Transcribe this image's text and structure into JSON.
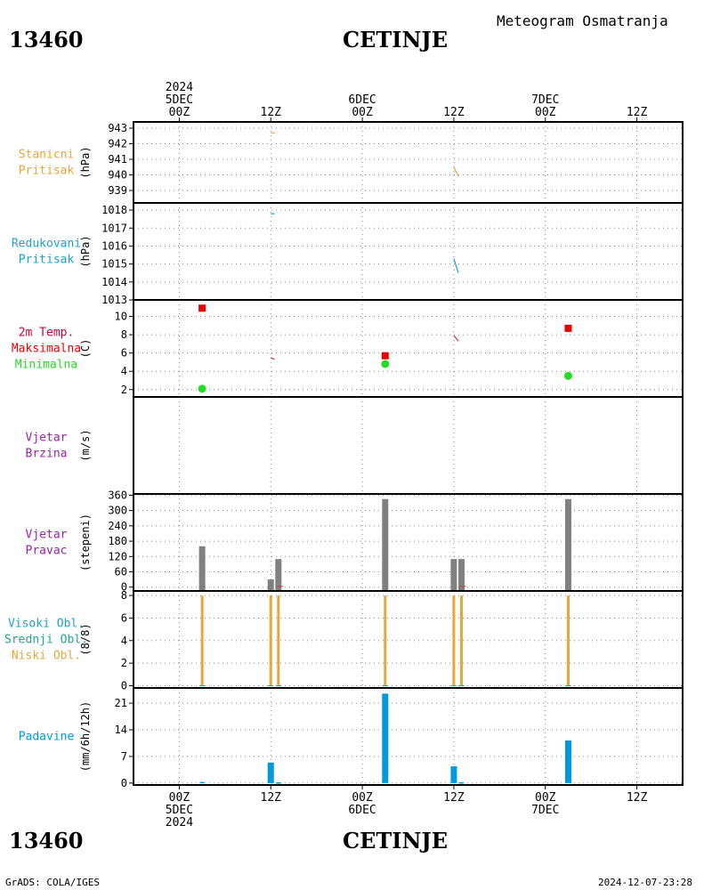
{
  "header": {
    "station_id": "13460",
    "station_name": "CETINJE",
    "meteogram_title": "Meteogram Osmatranja"
  },
  "footer": {
    "station_id": "13460",
    "station_name": "CETINJE",
    "credit": "GrADS: COLA/IGES",
    "timestamp": "2024-12-07-23:28"
  },
  "colors": {
    "pressure": "#e8a63c",
    "reduced": "#1aa3c8",
    "tmax": "#e60000",
    "tmin": "#22dd22",
    "wind": "#9922aa",
    "bars": "#808080",
    "clouds_low": "#e8a63c",
    "clouds_mid": "#1aaa88",
    "clouds_high": "#1aa3c8",
    "precip": "#0099dd"
  },
  "time_axis": {
    "x_min_hours": -6,
    "x_max_hours": 66,
    "top_labels": [
      {
        "h": 0,
        "lines": [
          "2024",
          "5DEC",
          "00Z"
        ]
      },
      {
        "h": 12,
        "lines": [
          "12Z"
        ]
      },
      {
        "h": 24,
        "lines": [
          "6DEC",
          "00Z"
        ]
      },
      {
        "h": 36,
        "lines": [
          "12Z"
        ]
      },
      {
        "h": 48,
        "lines": [
          "7DEC",
          "00Z"
        ]
      },
      {
        "h": 60,
        "lines": [
          "12Z"
        ]
      }
    ],
    "bottom_labels": [
      {
        "h": 0,
        "lines": [
          "00Z",
          "5DEC",
          "2024"
        ]
      },
      {
        "h": 12,
        "lines": [
          "12Z"
        ]
      },
      {
        "h": 24,
        "lines": [
          "00Z",
          "6DEC"
        ]
      },
      {
        "h": 36,
        "lines": [
          "12Z"
        ]
      },
      {
        "h": 48,
        "lines": [
          "00Z",
          "7DEC"
        ]
      },
      {
        "h": 60,
        "lines": [
          "12Z"
        ]
      }
    ]
  },
  "chart_data": [
    {
      "type": "line",
      "id": "pressure",
      "label_lines": [
        "Stanicni",
        "Pritisak"
      ],
      "unit": "(hPa)",
      "ylim": [
        938.2,
        943.4
      ],
      "yticks": [
        939,
        940,
        941,
        942,
        943
      ],
      "series": [
        {
          "segments": [
            [
              [
                12,
                942.7
              ],
              [
                12.5,
                942.7
              ]
            ],
            [
              [
                36,
                940.5
              ],
              [
                36.3,
                940.2
              ],
              [
                36.6,
                939.9
              ]
            ]
          ]
        }
      ]
    },
    {
      "type": "line",
      "id": "reduced",
      "label_lines": [
        "Redukovani",
        "Pritisak"
      ],
      "unit": "(hPa)",
      "ylim": [
        1013,
        1018.4
      ],
      "yticks": [
        1013,
        1014,
        1015,
        1016,
        1017,
        1018
      ],
      "series": [
        {
          "segments": [
            [
              [
                12,
                1017.8
              ],
              [
                12.5,
                1017.8
              ]
            ],
            [
              [
                36,
                1015.3
              ],
              [
                36.3,
                1014.9
              ],
              [
                36.6,
                1014.5
              ]
            ]
          ]
        }
      ]
    },
    {
      "type": "scatter",
      "id": "temperature",
      "label_lines": [
        "2m Temp.",
        "Maksimalna",
        "Minimalna"
      ],
      "unit": "(C)",
      "ylim": [
        1.2,
        11.8
      ],
      "yticks": [
        2,
        4,
        6,
        8,
        10
      ],
      "tmax": [
        {
          "x": 3,
          "y": 10.9
        },
        {
          "x": 27,
          "y": 5.7
        },
        {
          "x": 51,
          "y": 8.7
        }
      ],
      "tmin": [
        {
          "x": 3,
          "y": 2.1
        },
        {
          "x": 27,
          "y": 4.8
        },
        {
          "x": 51,
          "y": 3.5
        }
      ],
      "temp_segments": [
        [
          [
            12,
            5.5
          ],
          [
            12.5,
            5.3
          ]
        ],
        [
          [
            36,
            7.9
          ],
          [
            36.3,
            7.6
          ],
          [
            36.6,
            7.3
          ]
        ]
      ]
    },
    {
      "type": "bar",
      "id": "wind_speed",
      "label_lines": [
        "Vjetar",
        "Brzina"
      ],
      "unit": "(m/s)",
      "ylim": [
        0,
        1
      ],
      "yticks": [],
      "values": []
    },
    {
      "type": "bar",
      "id": "wind_dir",
      "label_lines": [
        "Vjetar",
        "Pravac"
      ],
      "unit": "(stepeni)",
      "ylim": [
        -15,
        365
      ],
      "yticks": [
        0,
        60,
        120,
        180,
        240,
        300,
        360
      ],
      "values": [
        {
          "x": 3,
          "y": 160
        },
        {
          "x": 12,
          "y": 30
        },
        {
          "x": 13,
          "y": 110
        },
        {
          "x": 27,
          "y": 345
        },
        {
          "x": 36,
          "y": 110
        },
        {
          "x": 37,
          "y": 110
        },
        {
          "x": 51,
          "y": 345
        }
      ]
    },
    {
      "type": "bar",
      "id": "clouds",
      "label_lines": [
        "Visoki Obl.",
        "Srednji Obl.",
        "Niski Obl."
      ],
      "unit": "(8/8)",
      "ylim": [
        -0.2,
        8.4
      ],
      "yticks": [
        0,
        2,
        4,
        6,
        8
      ],
      "values": [
        {
          "x": 3,
          "y": 8
        },
        {
          "x": 12,
          "y": 8
        },
        {
          "x": 13,
          "y": 8
        },
        {
          "x": 27,
          "y": 8
        },
        {
          "x": 36,
          "y": 8
        },
        {
          "x": 37,
          "y": 8
        },
        {
          "x": 51,
          "y": 8
        }
      ]
    },
    {
      "type": "bar",
      "id": "precip",
      "label_lines": [
        "Padavine"
      ],
      "unit": "(mm/6h/12h)",
      "ylim": [
        -0.5,
        25
      ],
      "yticks": [
        0,
        7,
        14,
        21
      ],
      "values": [
        {
          "x": 3,
          "y": 0.3
        },
        {
          "x": 12,
          "y": 5.4
        },
        {
          "x": 13,
          "y": 0.2
        },
        {
          "x": 27,
          "y": 23.5
        },
        {
          "x": 36,
          "y": 4.4
        },
        {
          "x": 37,
          "y": 0.2
        },
        {
          "x": 51,
          "y": 11.2
        }
      ]
    }
  ]
}
